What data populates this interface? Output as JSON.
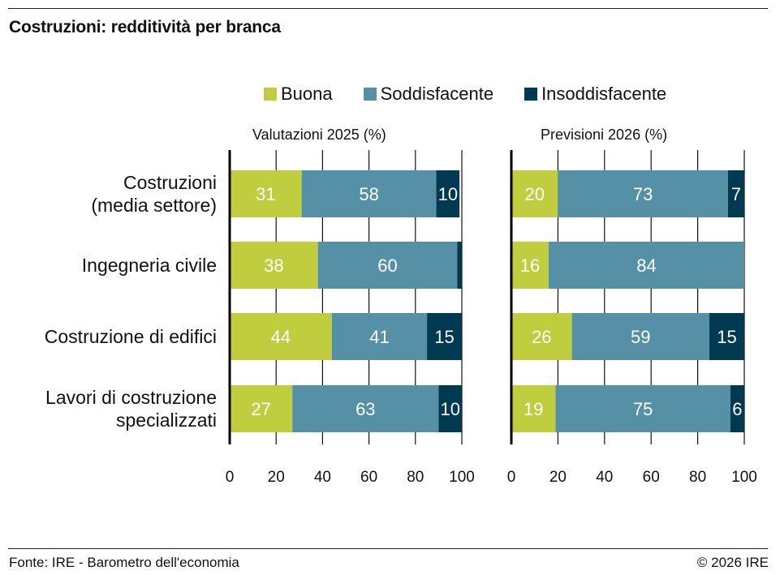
{
  "title": "Costruzioni: redditività per branca",
  "legend": [
    {
      "label": "Buona",
      "color": "#bfcd3f"
    },
    {
      "label": "Soddisfacente",
      "color": "#5590a6"
    },
    {
      "label": "Insoddisfacente",
      "color": "#003a52"
    }
  ],
  "footer": {
    "source": "Fonte: IRE - Barometro dell'economia",
    "copyright": "© 2026 IRE"
  },
  "chart_data": [
    {
      "type": "bar",
      "orientation": "horizontal",
      "stacked": true,
      "title": "Valutazioni 2025 (%)",
      "categories": [
        "Costruzioni (media settore)",
        "Ingegneria civile",
        "Costruzione di edifici",
        "Lavori di costruzione specializzati"
      ],
      "category_lines": [
        [
          "Costruzioni",
          "(media settore)"
        ],
        [
          "Ingegneria civile"
        ],
        [
          "Costruzione di edifici"
        ],
        [
          "Lavori di costruzione",
          "specializzati"
        ]
      ],
      "series": [
        {
          "name": "Buona",
          "values": [
            31,
            38,
            44,
            27
          ],
          "labels": [
            "31",
            "38",
            "44",
            "27"
          ]
        },
        {
          "name": "Soddisfacente",
          "values": [
            58,
            60,
            41,
            63
          ],
          "labels": [
            "58",
            "60",
            "41",
            "63"
          ]
        },
        {
          "name": "Insoddisfacente",
          "values": [
            10,
            2,
            15,
            10
          ],
          "labels": [
            "10",
            "",
            "15",
            "10"
          ]
        }
      ],
      "xlim": [
        0,
        100
      ],
      "xticks": [
        "0",
        "20",
        "40",
        "60",
        "80",
        "100"
      ],
      "grid": true,
      "legend": "top"
    },
    {
      "type": "bar",
      "orientation": "horizontal",
      "stacked": true,
      "title": "Previsioni 2026 (%)",
      "categories": [
        "Costruzioni (media settore)",
        "Ingegneria civile",
        "Costruzione di edifici",
        "Lavori di costruzione specializzati"
      ],
      "series": [
        {
          "name": "Buona",
          "values": [
            20,
            16,
            26,
            19
          ],
          "labels": [
            "20",
            "16",
            "26",
            "19"
          ]
        },
        {
          "name": "Soddisfacente",
          "values": [
            73,
            84,
            59,
            75
          ],
          "labels": [
            "73",
            "84",
            "59",
            "75"
          ]
        },
        {
          "name": "Insoddisfacente",
          "values": [
            7,
            0,
            15,
            6
          ],
          "labels": [
            "7",
            "",
            "15",
            "6"
          ]
        }
      ],
      "xlim": [
        0,
        100
      ],
      "xticks": [
        "0",
        "20",
        "40",
        "60",
        "80",
        "100"
      ],
      "grid": true,
      "legend": "top"
    }
  ]
}
